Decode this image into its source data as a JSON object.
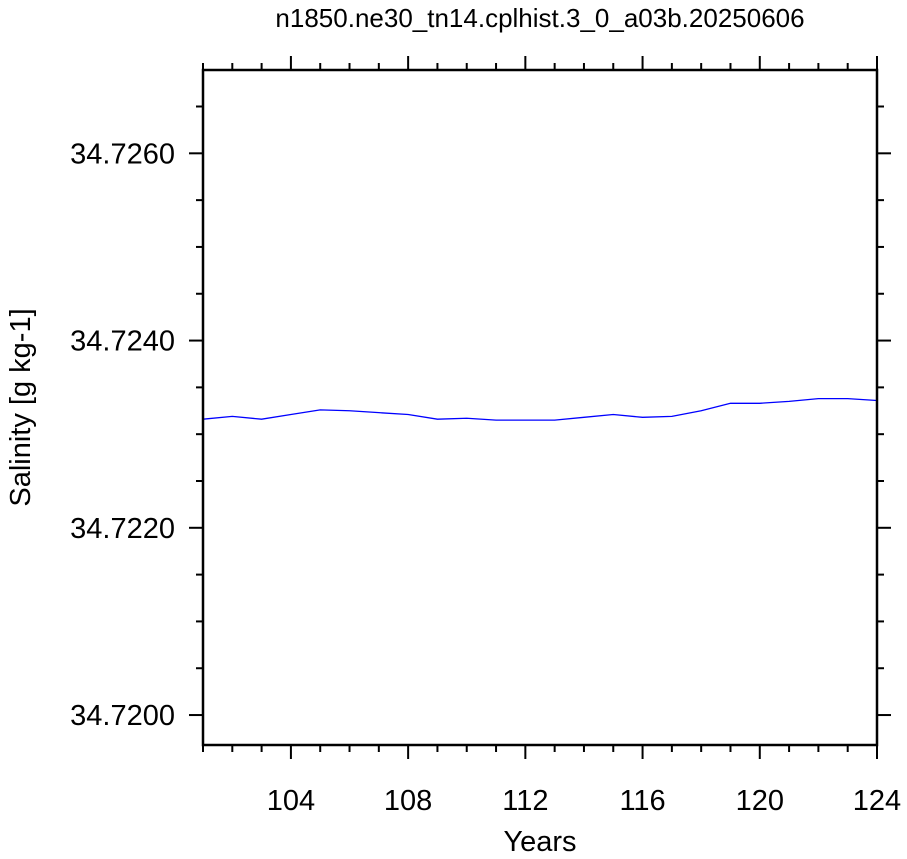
{
  "chart_data": {
    "type": "line",
    "title": "n1850.ne30_tn14.cplhist.3_0_a03b.20250606",
    "xlabel": "Years",
    "ylabel": "Salinity [g kg-1]",
    "xlim": [
      101,
      124
    ],
    "ylim": [
      34.71968,
      34.72689
    ],
    "x_major_ticks": [
      104,
      108,
      112,
      116,
      120,
      124
    ],
    "x_tick_labels": [
      "104",
      "108",
      "112",
      "116",
      "120",
      "124"
    ],
    "y_major_ticks": [
      34.72,
      34.722,
      34.724,
      34.726
    ],
    "y_tick_labels": [
      "34.7200",
      "34.7220",
      "34.7240",
      "34.7260"
    ],
    "x_minor_step": 1,
    "y_minor_step": 0.0005,
    "grid": false,
    "series": [
      {
        "color": "#0000ff",
        "x": [
          101,
          102,
          103,
          104,
          105,
          106,
          107,
          108,
          109,
          110,
          111,
          112,
          113,
          114,
          115,
          116,
          117,
          118,
          119,
          120,
          121,
          122,
          123,
          124
        ],
        "values": [
          34.72316,
          34.72319,
          34.72316,
          34.72321,
          34.72326,
          34.72325,
          34.72323,
          34.72321,
          34.72316,
          34.72317,
          34.72315,
          34.72315,
          34.72315,
          34.72318,
          34.72321,
          34.72318,
          34.72319,
          34.72325,
          34.72333,
          34.72333,
          34.72335,
          34.72338,
          34.72338,
          34.72336
        ]
      }
    ]
  }
}
